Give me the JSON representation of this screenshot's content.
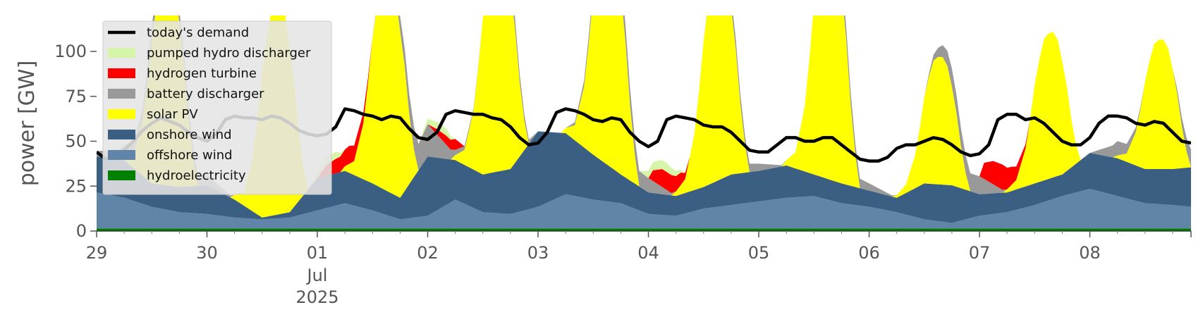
{
  "chart_data": {
    "type": "area",
    "ylabel": "power [GW]",
    "xlabel": "",
    "ylim": [
      0,
      120
    ],
    "yticks": [
      0,
      25,
      50,
      75,
      100
    ],
    "x_range_hours": [
      0,
      238
    ],
    "x_ticks": [
      {
        "hour": 0,
        "label": "29",
        "sub": []
      },
      {
        "hour": 24,
        "label": "30",
        "sub": []
      },
      {
        "hour": 48,
        "label": "01",
        "sub": [
          "Jul",
          "2025"
        ]
      },
      {
        "hour": 72,
        "label": "02",
        "sub": []
      },
      {
        "hour": 96,
        "label": "03",
        "sub": []
      },
      {
        "hour": 120,
        "label": "04",
        "sub": []
      },
      {
        "hour": 144,
        "label": "05",
        "sub": []
      },
      {
        "hour": 168,
        "label": "06",
        "sub": []
      },
      {
        "hour": 192,
        "label": "07",
        "sub": []
      },
      {
        "hour": 216,
        "label": "08",
        "sub": []
      }
    ],
    "x_time_axis": "hours since 29 Jun 2025 00:00",
    "grid": false,
    "legend_position": "top-left",
    "series": [
      {
        "name": "hydroelectricity",
        "color": "#008000",
        "x": [
          0,
          238
        ],
        "y": [
          1.5,
          1.5
        ]
      },
      {
        "name": "offshore wind",
        "color": "#6185a8",
        "x": [
          0,
          6,
          12,
          18,
          24,
          30,
          36,
          42,
          48,
          54,
          60,
          66,
          72,
          78,
          84,
          90,
          96,
          102,
          108,
          114,
          120,
          126,
          132,
          138,
          144,
          150,
          156,
          162,
          168,
          174,
          180,
          186,
          192,
          198,
          204,
          210,
          216,
          222,
          228,
          234,
          238
        ],
        "y": [
          20,
          17,
          12,
          9,
          8,
          6,
          5,
          6,
          10,
          14,
          10,
          5,
          7,
          16,
          9,
          8,
          12,
          19,
          16,
          14,
          8,
          7,
          11,
          13,
          15,
          17,
          18,
          14,
          12,
          9,
          5,
          3,
          7,
          9,
          13,
          18,
          22,
          18,
          14,
          13,
          12
        ]
      },
      {
        "name": "onshore wind",
        "color": "#3a5f82",
        "x": [
          0,
          6,
          12,
          18,
          24,
          30,
          36,
          42,
          48,
          54,
          60,
          66,
          72,
          78,
          84,
          90,
          96,
          102,
          108,
          114,
          120,
          126,
          132,
          138,
          144,
          150,
          156,
          162,
          168,
          174,
          180,
          186,
          192,
          198,
          204,
          210,
          216,
          222,
          228,
          234,
          238
        ],
        "y": [
          20,
          21,
          13,
          14,
          16,
          10,
          1,
          3,
          18,
          18,
          15,
          12,
          33,
          22,
          21,
          25,
          42,
          34,
          25,
          16,
          12,
          11,
          12,
          17,
          17,
          18,
          12,
          11,
          9,
          8,
          20,
          21,
          12,
          11,
          12,
          12,
          20,
          21,
          19,
          20,
          22
        ]
      },
      {
        "name": "solar PV",
        "color": "#ffff00",
        "x": [
          0,
          5,
          8,
          10,
          11,
          12,
          13,
          14,
          15,
          16,
          17,
          18,
          19,
          20,
          21,
          22,
          23,
          24
        ],
        "y": [
          0,
          0,
          2,
          8,
          14,
          21,
          26,
          30,
          31,
          31,
          29,
          24,
          18,
          10,
          4,
          0,
          0,
          0
        ],
        "daily_peaks": [
          125,
          125,
          130,
          135,
          135,
          125,
          145,
          78,
          86,
          78
        ],
        "daily_shifts": [
          7,
          7,
          10,
          6,
          4,
          5,
          5,
          7,
          5,
          6
        ]
      },
      {
        "name": "battery discharger",
        "color": "#999999",
        "x": [
          0,
          6,
          12,
          18,
          24,
          30,
          36,
          42,
          48,
          54,
          60,
          66,
          72,
          78,
          84,
          90,
          96,
          102,
          108,
          114,
          120,
          126,
          132,
          138,
          144,
          150,
          156,
          162,
          168,
          174,
          180,
          186,
          192,
          198,
          204,
          210,
          216,
          222,
          228,
          234,
          238
        ],
        "y": [
          3,
          6,
          8,
          7,
          6,
          0,
          0,
          0,
          0,
          0,
          0,
          8,
          18,
          3,
          0,
          7,
          0,
          0,
          5,
          10,
          8,
          0,
          0,
          6,
          4,
          0,
          0,
          8,
          4,
          0,
          0,
          10,
          10,
          0,
          0,
          0,
          0,
          8,
          0,
          0,
          10
        ]
      },
      {
        "name": "hydrogen turbine",
        "color": "#ff0000",
        "x": [
          0,
          48,
          50,
          52,
          55,
          58,
          60,
          72,
          74,
          76,
          78,
          80,
          120,
          121,
          123,
          125,
          127,
          129,
          192,
          193,
          195,
          197,
          199,
          201,
          203,
          238
        ],
        "y": [
          0,
          0,
          6,
          8,
          10,
          6,
          0,
          0,
          3,
          5,
          6,
          0,
          0,
          6,
          10,
          10,
          7,
          0,
          0,
          9,
          13,
          14,
          10,
          5,
          0,
          0
        ]
      },
      {
        "name": "pumped hydro discharger",
        "color": "#d6f5a8",
        "x": [
          0,
          46,
          48,
          50,
          52,
          54,
          70,
          72,
          74,
          76,
          78,
          118,
          120,
          122,
          124,
          126,
          128,
          238
        ],
        "y": [
          0,
          0,
          3,
          4,
          4,
          0,
          0,
          3,
          4,
          4,
          0,
          0,
          4,
          5,
          5,
          3,
          0,
          0
        ]
      },
      {
        "name": "today's demand",
        "color": "#000000",
        "type": "line",
        "x": [
          0,
          2,
          4,
          6,
          8,
          10,
          12,
          14,
          16,
          18,
          20,
          22,
          24,
          26,
          28,
          30,
          32,
          34,
          36,
          38,
          40,
          42,
          44,
          46,
          48,
          50,
          52,
          54,
          56,
          58,
          60,
          62,
          64,
          66,
          68,
          70,
          72,
          74,
          76,
          78,
          80,
          82,
          84,
          86,
          88,
          90,
          92,
          94,
          96,
          98,
          100,
          102,
          104,
          106,
          108,
          110,
          112,
          114,
          116,
          118,
          120,
          122,
          124,
          126,
          128,
          130,
          132,
          134,
          136,
          138,
          140,
          142,
          144,
          146,
          148,
          150,
          152,
          154,
          156,
          158,
          160,
          162,
          164,
          166,
          168,
          170,
          172,
          174,
          176,
          178,
          180,
          182,
          184,
          186,
          188,
          190,
          192,
          194,
          196,
          198,
          200,
          202,
          204,
          206,
          208,
          210,
          212,
          214,
          216,
          218,
          220,
          222,
          224,
          226,
          228,
          230,
          232,
          234,
          236,
          238
        ],
        "y": [
          44,
          40,
          42,
          45,
          50,
          56,
          60,
          63,
          61,
          59,
          55,
          52,
          50,
          54,
          62,
          64,
          63,
          63,
          62,
          64,
          63,
          60,
          56,
          54,
          53,
          54,
          58,
          68,
          67,
          65,
          64,
          62,
          64,
          63,
          57,
          52,
          51,
          55,
          65,
          67,
          66,
          65,
          65,
          63,
          62,
          58,
          52,
          48,
          49,
          55,
          66,
          68,
          67,
          65,
          62,
          61,
          63,
          62,
          55,
          50,
          47,
          50,
          62,
          64,
          63,
          62,
          59,
          58,
          58,
          55,
          50,
          45,
          44,
          44,
          48,
          52,
          52,
          50,
          50,
          52,
          52,
          48,
          44,
          40,
          39,
          39,
          41,
          46,
          48,
          48,
          50,
          52,
          51,
          48,
          44,
          42,
          43,
          48,
          62,
          65,
          65,
          62,
          63,
          60,
          55,
          50,
          48,
          48,
          52,
          60,
          64,
          64,
          63,
          60,
          59,
          61,
          60,
          55,
          50,
          49
        ]
      }
    ]
  },
  "legend": {
    "items": [
      {
        "label": "today's demand",
        "color": "#000000",
        "kind": "line"
      },
      {
        "label": "pumped hydro discharger",
        "color": "#d6f5a8",
        "kind": "patch"
      },
      {
        "label": "hydrogen turbine",
        "color": "#ff0000",
        "kind": "patch"
      },
      {
        "label": "battery discharger",
        "color": "#999999",
        "kind": "patch"
      },
      {
        "label": "solar PV",
        "color": "#ffff00",
        "kind": "patch"
      },
      {
        "label": "onshore wind",
        "color": "#3a5f82",
        "kind": "patch"
      },
      {
        "label": "offshore wind",
        "color": "#6185a8",
        "kind": "patch"
      },
      {
        "label": "hydroelectricity",
        "color": "#008000",
        "kind": "patch"
      }
    ]
  }
}
